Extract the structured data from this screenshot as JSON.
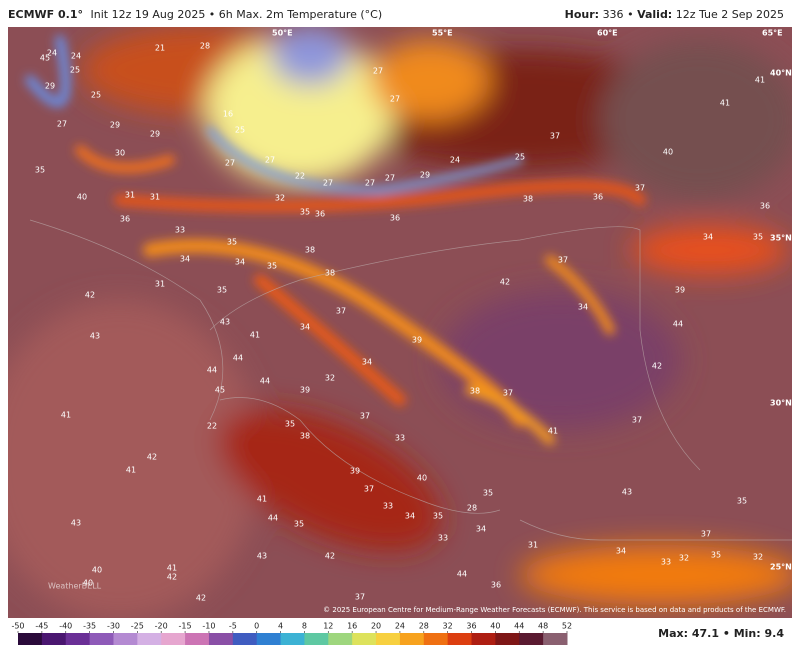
{
  "header": {
    "model": "ECMWF 0.1°",
    "description": "Init 12z 19 Aug 2025 • 6h Max. 2m Temperature (°C)",
    "hour_label": "Hour:",
    "hour": "336",
    "separator": "•",
    "valid_label": "Valid:",
    "valid": "12z Tue 2 Sep 2025"
  },
  "map": {
    "longitude_labels": [
      "50°E",
      "55°E",
      "60°E",
      "65°E"
    ],
    "latitude_labels": [
      "40°N",
      "35°N",
      "30°N",
      "25°N"
    ],
    "temperature_labels": [
      24,
      45,
      24,
      21,
      28,
      25,
      29,
      25,
      27,
      29,
      29,
      30,
      16,
      25,
      27,
      27,
      22,
      27,
      27,
      27,
      29,
      24,
      25,
      37,
      27,
      27,
      35,
      40,
      31,
      31,
      32,
      35,
      36,
      36,
      38,
      36,
      37,
      40,
      41,
      41,
      36,
      34,
      35,
      36,
      33,
      35,
      34,
      34,
      35,
      38,
      38,
      35,
      31,
      42,
      43,
      43,
      37,
      34,
      41,
      39,
      42,
      37,
      34,
      39,
      44,
      42,
      44,
      44,
      45,
      44,
      39,
      32,
      34,
      38,
      37,
      37,
      35,
      38,
      22,
      33,
      41,
      37,
      41,
      42,
      41,
      39,
      40,
      37,
      41,
      33,
      34,
      35,
      28,
      35,
      43,
      35,
      34,
      33,
      35,
      44,
      43,
      37,
      31,
      34,
      33,
      32,
      35,
      32,
      42,
      43,
      40,
      40,
      41,
      42,
      44,
      36,
      42,
      37
    ],
    "watermark": "WeatherBELL",
    "credit": "© 2025 European Centre for Medium-Range Weather Forecasts (ECMWF). This service is based on data and products of the ECMWF."
  },
  "colorbar": {
    "ticks": [
      -50,
      -45,
      -40,
      -35,
      -30,
      -25,
      -20,
      -15,
      -10,
      -5,
      0,
      4,
      8,
      12,
      16,
      20,
      24,
      28,
      32,
      36,
      40,
      44,
      48,
      52
    ],
    "colors": [
      "#2a0a3a",
      "#4a1670",
      "#6a2f96",
      "#8e5ab8",
      "#b48ad2",
      "#d4b0e4",
      "#e6a6cf",
      "#cc74b4",
      "#8a4fa6",
      "#3f5cc0",
      "#2f80d2",
      "#3cb2d4",
      "#5ec8a2",
      "#9ed67e",
      "#dde25c",
      "#f7d040",
      "#f7a21e",
      "#ef7012",
      "#dc3e10",
      "#ae1e12",
      "#7e1616",
      "#5a1a30",
      "#8a6070"
    ]
  },
  "stats": {
    "max_label": "Max:",
    "max": 47.1,
    "separator": "•",
    "min_label": "Min:",
    "min": 9.4
  }
}
